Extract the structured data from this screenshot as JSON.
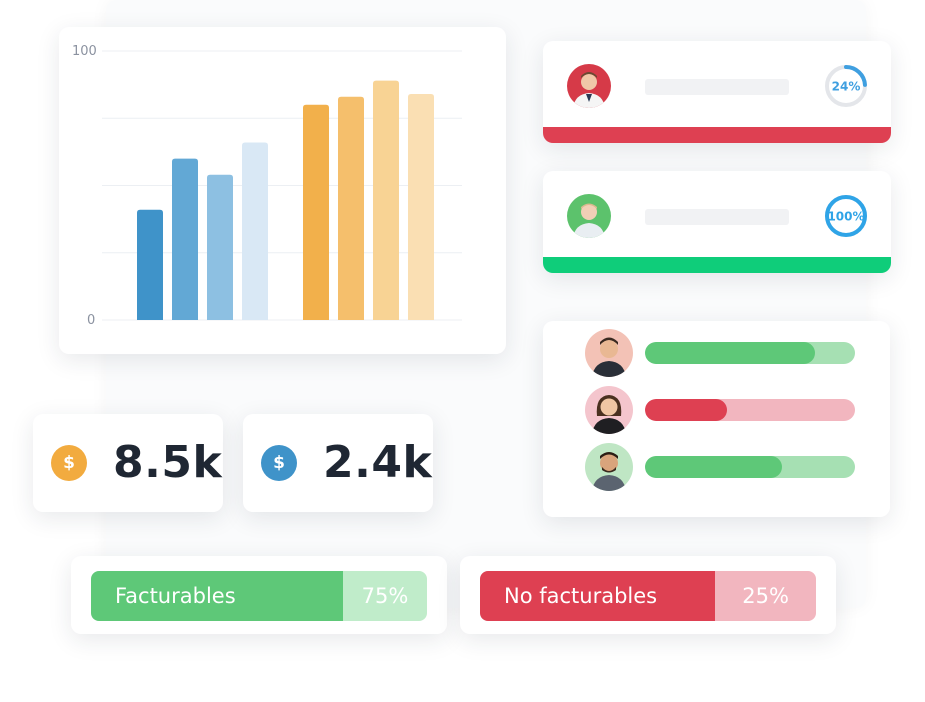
{
  "chart_data": {
    "type": "bar",
    "y_ticks": [
      "0",
      "100"
    ],
    "ylim": [
      0,
      100
    ],
    "grid": true,
    "series": [
      {
        "values": [
          41,
          60,
          54,
          66
        ],
        "colors": [
          "#3f93c9",
          "#62a8d5",
          "#8dc0e2",
          "#d9e8f5"
        ]
      },
      {
        "values": [
          80,
          83,
          89,
          84
        ],
        "colors": [
          "#f2b04b",
          "#f5bf6c",
          "#f8d394",
          "#fadfb3"
        ]
      }
    ]
  },
  "user_cards": [
    {
      "percent_value": 24,
      "percent_text": "24%",
      "ring_color": "#3f9fe0",
      "track_color": "#e4e6ea",
      "stripe_color": "#de4052",
      "avatar_bg": "#d63a48"
    },
    {
      "percent_value": 100,
      "percent_text": "100%",
      "ring_color": "#2fa4e7",
      "track_color": "#e4e6ea",
      "stripe_color": "#0fcd7a",
      "avatar_bg": "#5cc26c"
    }
  ],
  "team_progress": [
    {
      "value": 0.81,
      "fill_color": "#5ec878",
      "track_color": "#a6e0b3",
      "avatar_bg": "#f3c2b6"
    },
    {
      "value": 0.39,
      "fill_color": "#de4052",
      "track_color": "#f2b6bf",
      "avatar_bg": "#f4c5cd"
    },
    {
      "value": 0.65,
      "fill_color": "#5ec878",
      "track_color": "#a6e0b3",
      "avatar_bg": "#bfe6c4"
    }
  ],
  "stats": [
    {
      "icon": "dollar-coin-icon",
      "symbol": "$",
      "value": "8.5k",
      "color": "#f2ab3f"
    },
    {
      "icon": "dollar-coin-icon",
      "symbol": "$",
      "value": "2.4k",
      "color": "#3f93c9"
    }
  ],
  "billing": [
    {
      "label": "Facturables",
      "percent": "75%",
      "share": 0.75,
      "label_color": "#5ec878",
      "pct_color": "#c0ecca"
    },
    {
      "label": "No facturables",
      "percent": "25%",
      "share": 0.25,
      "label_color": "#de4052",
      "pct_color": "#f2b6bf"
    }
  ]
}
